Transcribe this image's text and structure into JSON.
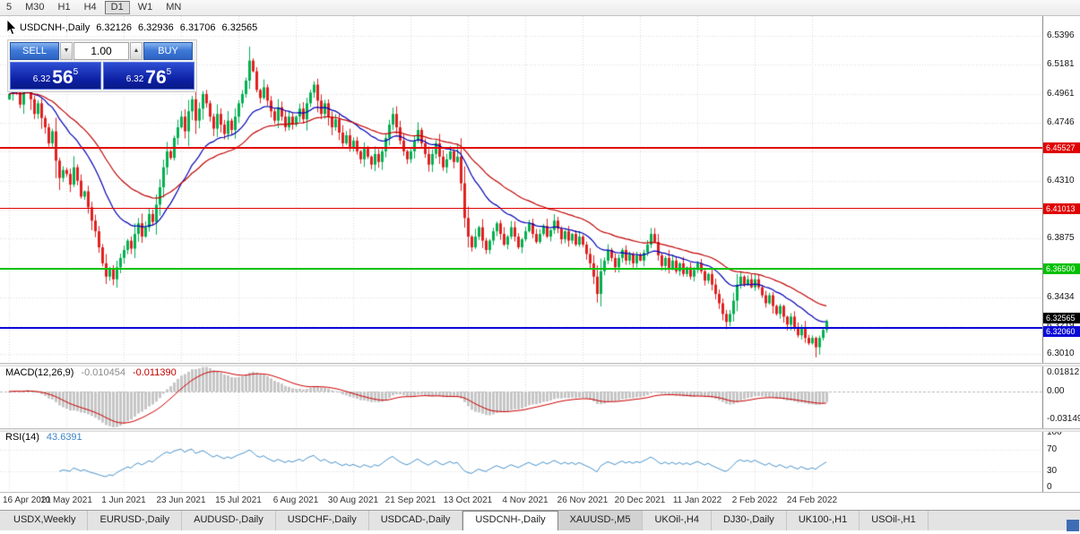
{
  "toolbar": {
    "buttons": [
      "5",
      "M30",
      "H1",
      "H4",
      "D1",
      "W1",
      "MN"
    ],
    "active": "D1"
  },
  "ohlc": {
    "symbol": "USDCNH-,Daily",
    "open": "6.32126",
    "high": "6.32936",
    "low": "6.31706",
    "close": "6.32565"
  },
  "trade_panel": {
    "sell": "SELL",
    "buy": "BUY",
    "volume": "1.00",
    "spin_up": "▲",
    "spin_down": "▼",
    "bid": {
      "prefix": "6.32",
      "big": "56",
      "sup": "5"
    },
    "ask": {
      "prefix": "6.32",
      "big": "76",
      "sup": "5"
    }
  },
  "price_axis_labels": [
    "6.5396",
    "6.5181",
    "6.4961",
    "6.4746",
    "6.4526",
    "6.4310",
    "6.4090",
    "6.3875",
    "6.3654",
    "6.3434",
    "6.3219",
    "6.3010"
  ],
  "date_axis": [
    "16 Apr 2021",
    "10 May 2021",
    "1 Jun 2021",
    "23 Jun 2021",
    "15 Jul 2021",
    "6 Aug 2021",
    "30 Aug 2021",
    "21 Sep 2021",
    "13 Oct 2021",
    "4 Nov 2021",
    "26 Nov 2021",
    "20 Dec 2021",
    "11 Jan 2022",
    "2 Feb 2022",
    "24 Feb 2022"
  ],
  "levels": [
    {
      "price": 6.45527,
      "label": "6.45527",
      "color": "#e00000",
      "line_width": 2,
      "tag_dy": 0
    },
    {
      "price": 6.41013,
      "label": "6.41013",
      "color": "#e00000",
      "line_width": 1,
      "tag_dy": 0
    },
    {
      "price": 6.365,
      "label": "6.36500",
      "color": "#00c000",
      "line_width": 2,
      "tag_dy": 0
    },
    {
      "price": 6.3206,
      "label": "6.32060",
      "color": "#0a0ad8",
      "line_width": 2,
      "tag_dy": 4
    }
  ],
  "price_tag": {
    "price": 6.32565,
    "label": "6.32565",
    "color": "#000000",
    "tag_dy": -3
  },
  "indicators": {
    "macd": {
      "title": "MACD(12,26,9)",
      "value_main": "-0.010454",
      "value_signal": "-0.011390",
      "axis": [
        "0.01812",
        "0.00",
        "-0.03149"
      ]
    },
    "rsi": {
      "title": "RSI(14)",
      "value": "43.6391",
      "axis": [
        "100",
        "70",
        "30",
        "0"
      ],
      "levels": [
        70,
        30
      ]
    }
  },
  "tabs": [
    "USDX,Weekly",
    "EURUSD-,Daily",
    "AUDUSD-,Daily",
    "USDCHF-,Daily",
    "USDCAD-,Daily",
    "USDCNH-,Daily",
    "XAUUSD-,M5",
    "UKOil-,H4",
    "DJ30-,Daily",
    "UK100-,H1",
    "USOil-,H1"
  ],
  "active_tab_index": 5,
  "dim_tab_index": 6,
  "chart_data": {
    "type": "candlestick",
    "symbol": "USDCNH-",
    "timeframe": "Daily",
    "title": "USDCNH-,Daily",
    "price_range": {
      "top": 6.5544,
      "bottom": 6.2942
    },
    "grid": "dotted",
    "legend_position": "none",
    "first_open": 6.492,
    "closes": [
      6.496,
      6.505,
      6.498,
      6.488,
      6.5,
      6.51,
      6.492,
      6.481,
      6.489,
      6.478,
      6.471,
      6.459,
      6.468,
      6.446,
      6.433,
      6.439,
      6.436,
      6.428,
      6.441,
      6.431,
      6.419,
      6.423,
      6.411,
      6.401,
      6.393,
      6.381,
      6.369,
      6.359,
      6.365,
      6.357,
      6.366,
      6.373,
      6.379,
      6.386,
      6.38,
      6.391,
      6.399,
      6.389,
      6.396,
      6.406,
      6.4,
      6.413,
      6.426,
      6.441,
      6.453,
      6.448,
      6.463,
      6.471,
      6.479,
      6.468,
      6.483,
      6.492,
      6.476,
      6.485,
      6.496,
      6.489,
      6.479,
      6.47,
      6.481,
      6.473,
      6.466,
      6.476,
      6.469,
      6.479,
      6.489,
      6.496,
      6.506,
      6.521,
      6.513,
      6.499,
      6.493,
      6.501,
      6.491,
      6.483,
      6.476,
      6.486,
      6.479,
      6.471,
      6.479,
      6.473,
      6.479,
      6.485,
      6.477,
      6.489,
      6.497,
      6.503,
      6.491,
      6.481,
      6.489,
      6.479,
      6.471,
      6.477,
      6.467,
      6.459,
      6.465,
      6.456,
      6.461,
      6.453,
      6.447,
      6.455,
      6.449,
      6.443,
      6.451,
      6.445,
      6.453,
      6.463,
      6.473,
      6.481,
      6.471,
      6.461,
      6.453,
      6.447,
      6.453,
      6.461,
      6.469,
      6.459,
      6.451,
      6.443,
      6.451,
      6.459,
      6.449,
      6.441,
      6.447,
      6.453,
      6.445,
      6.449,
      6.429,
      6.403,
      6.389,
      6.381,
      6.389,
      6.396,
      6.386,
      6.379,
      6.386,
      6.393,
      6.399,
      6.391,
      6.383,
      6.389,
      6.396,
      6.389,
      6.381,
      6.387,
      6.393,
      6.399,
      6.391,
      6.385,
      6.391,
      6.397,
      6.389,
      6.394,
      6.401,
      6.395,
      6.387,
      6.393,
      6.386,
      6.391,
      6.383,
      6.389,
      6.383,
      6.376,
      6.369,
      6.359,
      6.346,
      6.363,
      6.371,
      6.379,
      6.373,
      6.366,
      6.373,
      6.379,
      6.371,
      6.376,
      6.369,
      6.375,
      6.371,
      6.377,
      6.383,
      6.391,
      6.385,
      6.375,
      6.367,
      6.373,
      6.365,
      6.371,
      6.363,
      6.369,
      6.361,
      6.366,
      6.359,
      6.364,
      6.369,
      6.363,
      6.356,
      6.361,
      6.353,
      6.346,
      6.339,
      6.331,
      6.325,
      6.331,
      6.341,
      6.353,
      6.359,
      6.353,
      6.357,
      6.351,
      6.357,
      6.351,
      6.345,
      6.339,
      6.345,
      6.337,
      6.331,
      6.337,
      6.329,
      6.323,
      6.329,
      6.321,
      6.315,
      6.321,
      6.313,
      6.309,
      6.313,
      6.306,
      6.313,
      6.319,
      6.3257
    ],
    "wick_overrides": {
      "27": {
        "low": 6.3535
      },
      "29": {
        "low": 6.3525
      },
      "67": {
        "high": 6.5315
      },
      "125": {
        "high": 6.4585
      },
      "164": {
        "low": 6.3395
      },
      "200": {
        "low": 6.3195
      },
      "225": {
        "low": 6.2985
      },
      "226": {
        "low": 6.3005
      }
    },
    "label_every": 16,
    "moving_averages": [
      {
        "period": 20,
        "color": "#0000b4"
      },
      {
        "period": 40,
        "color": "#c00000"
      }
    ],
    "colors": {
      "up": "#00b050",
      "down": "#e02020",
      "macd_hist": "#c6c6c6",
      "macd_signal": "#cc0000",
      "rsi_line": "#4a94cc",
      "grid": "#d9d9d9"
    }
  }
}
